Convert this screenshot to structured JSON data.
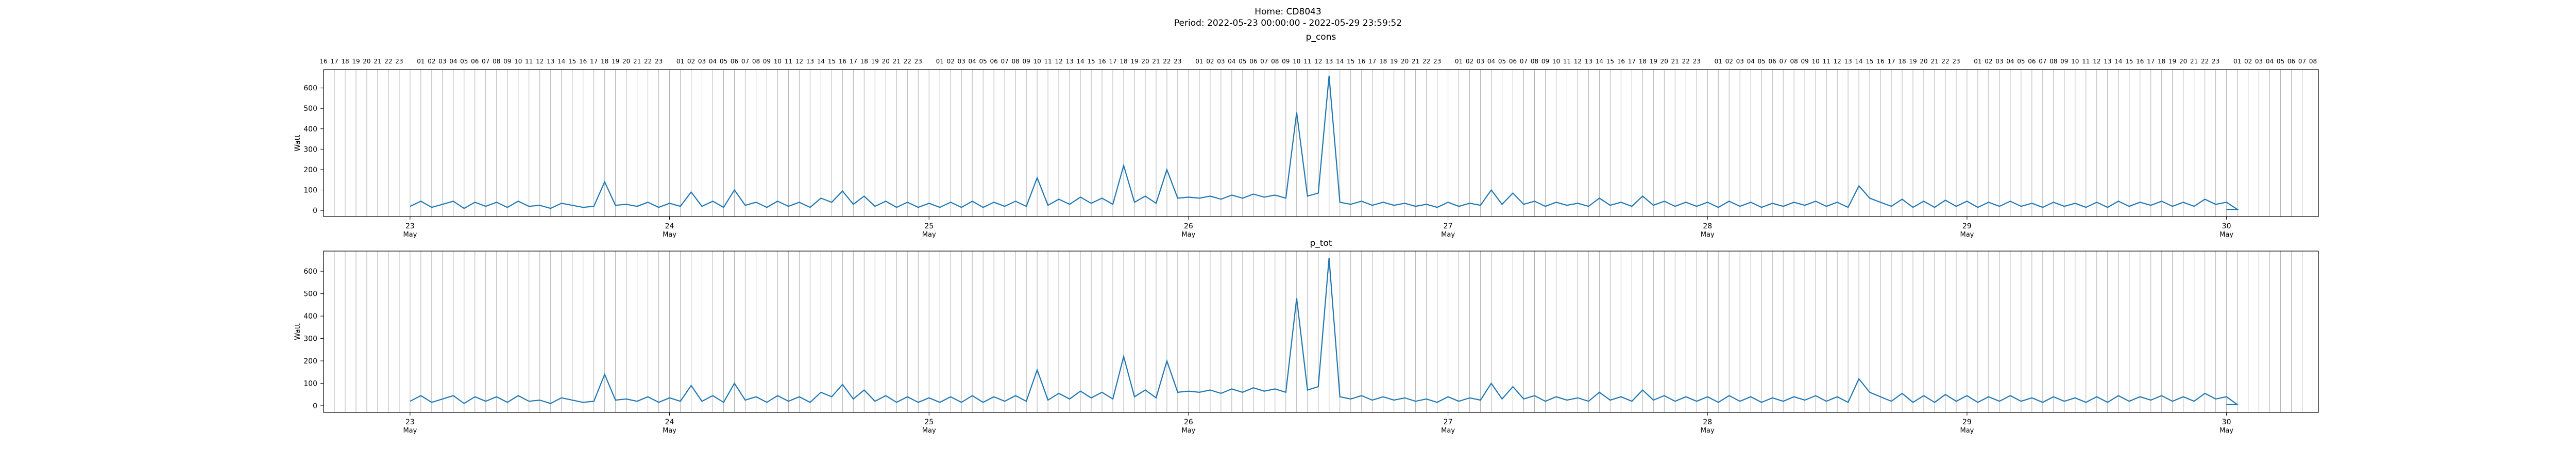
{
  "figure": {
    "title_line1": "Home: CD8043",
    "title_line2": "Period: 2022-05-23 00:00:00 - 2022-05-29 23:59:52"
  },
  "chart_data": [
    {
      "type": "line",
      "title": "p_cons",
      "ylabel": "Watt",
      "xlabel": "",
      "x_range": [
        "2022-05-22 16:00",
        "2022-05-30 08:30"
      ],
      "ylim": [
        -30,
        690
      ],
      "yticks": [
        0,
        100,
        200,
        300,
        400,
        500,
        600
      ],
      "xticks": [
        {
          "x": "2022-05-23 00:00",
          "day": "23",
          "month": "May"
        },
        {
          "x": "2022-05-24 00:00",
          "day": "24",
          "month": "May"
        },
        {
          "x": "2022-05-25 00:00",
          "day": "25",
          "month": "May"
        },
        {
          "x": "2022-05-26 00:00",
          "day": "26",
          "month": "May"
        },
        {
          "x": "2022-05-27 00:00",
          "day": "27",
          "month": "May"
        },
        {
          "x": "2022-05-28 00:00",
          "day": "28",
          "month": "May"
        },
        {
          "x": "2022-05-29 00:00",
          "day": "29",
          "month": "May"
        },
        {
          "x": "2022-05-30 00:00",
          "day": "30",
          "month": "May"
        }
      ],
      "grid": true,
      "line_color": "#1f77b4",
      "series": [
        {
          "hourly_start": "2022-05-23 00:00",
          "hourly_values": [
            20,
            45,
            15,
            30,
            45,
            10,
            40,
            20,
            40,
            15,
            45,
            20,
            25,
            10,
            35,
            25,
            15,
            20,
            140,
            25,
            30,
            20,
            40,
            15,
            35,
            20,
            90,
            20,
            45,
            15,
            100,
            25,
            40,
            15,
            45,
            20,
            40,
            15,
            60,
            40,
            95,
            30,
            70,
            20,
            45,
            15,
            40,
            15,
            35,
            15,
            40,
            15,
            45,
            15,
            40,
            20,
            45,
            20,
            160,
            25,
            55,
            30,
            65,
            35,
            60,
            30,
            220,
            40,
            70,
            35,
            200,
            60,
            65,
            60,
            70,
            55,
            75,
            60,
            80,
            65,
            75,
            60,
            480,
            70,
            85,
            660,
            40,
            30,
            45,
            25,
            40,
            25,
            35,
            20,
            30,
            15,
            40,
            20,
            35,
            25,
            100,
            30,
            85,
            30,
            45,
            20,
            40,
            25,
            35,
            20,
            60,
            25,
            40,
            20,
            70,
            25,
            45,
            20,
            40,
            20,
            40,
            15,
            45,
            20,
            40,
            15,
            35,
            20,
            40,
            25,
            45,
            20,
            40,
            15,
            120,
            60,
            40,
            20,
            55,
            15,
            45,
            15,
            50,
            20,
            45,
            15,
            40,
            20,
            45,
            20,
            35,
            15,
            40,
            20,
            35,
            15,
            40,
            15,
            45,
            20,
            40,
            25,
            45,
            20,
            40,
            20,
            55,
            30,
            40,
            5
          ],
          "flat_after": "2022-05-27 00:00",
          "flat_value": 5,
          "flat_end": "2022-05-29 23:59"
        }
      ]
    },
    {
      "type": "line",
      "title": "p_tot",
      "ylabel": "Watt",
      "xlabel": "",
      "x_range": [
        "2022-05-22 16:00",
        "2022-05-30 08:30"
      ],
      "ylim": [
        -30,
        690
      ],
      "yticks": [
        0,
        100,
        200,
        300,
        400,
        500,
        600
      ],
      "xticks": [
        {
          "x": "2022-05-23 00:00",
          "day": "23",
          "month": "May"
        },
        {
          "x": "2022-05-24 00:00",
          "day": "24",
          "month": "May"
        },
        {
          "x": "2022-05-25 00:00",
          "day": "25",
          "month": "May"
        },
        {
          "x": "2022-05-26 00:00",
          "day": "26",
          "month": "May"
        },
        {
          "x": "2022-05-27 00:00",
          "day": "27",
          "month": "May"
        },
        {
          "x": "2022-05-28 00:00",
          "day": "28",
          "month": "May"
        },
        {
          "x": "2022-05-29 00:00",
          "day": "29",
          "month": "May"
        },
        {
          "x": "2022-05-30 00:00",
          "day": "30",
          "month": "May"
        }
      ],
      "grid": true,
      "line_color": "#1f77b4",
      "series": [
        {
          "hourly_start": "2022-05-23 00:00",
          "hourly_values": [
            20,
            45,
            15,
            30,
            45,
            10,
            40,
            20,
            40,
            15,
            45,
            20,
            25,
            10,
            35,
            25,
            15,
            20,
            140,
            25,
            30,
            20,
            40,
            15,
            35,
            20,
            90,
            20,
            45,
            15,
            100,
            25,
            40,
            15,
            45,
            20,
            40,
            15,
            60,
            40,
            95,
            30,
            70,
            20,
            45,
            15,
            40,
            15,
            35,
            15,
            40,
            15,
            45,
            15,
            40,
            20,
            45,
            20,
            160,
            25,
            55,
            30,
            65,
            35,
            60,
            30,
            220,
            40,
            70,
            35,
            200,
            60,
            65,
            60,
            70,
            55,
            75,
            60,
            80,
            65,
            75,
            60,
            480,
            70,
            85,
            660,
            40,
            30,
            45,
            25,
            40,
            25,
            35,
            20,
            30,
            15,
            40,
            20,
            35,
            25,
            100,
            30,
            85,
            30,
            45,
            20,
            40,
            25,
            35,
            20,
            60,
            25,
            40,
            20,
            70,
            25,
            45,
            20,
            40,
            20,
            40,
            15,
            45,
            20,
            40,
            15,
            35,
            20,
            40,
            25,
            45,
            20,
            40,
            15,
            120,
            60,
            40,
            20,
            55,
            15,
            45,
            15,
            50,
            20,
            45,
            15,
            40,
            20,
            45,
            20,
            35,
            15,
            40,
            20,
            35,
            15,
            40,
            15,
            45,
            20,
            40,
            25,
            45,
            20,
            40,
            20,
            55,
            30,
            40,
            5
          ],
          "flat_after": "2022-05-27 00:00",
          "flat_value": 5,
          "flat_end": "2022-05-29 23:59"
        }
      ]
    }
  ]
}
